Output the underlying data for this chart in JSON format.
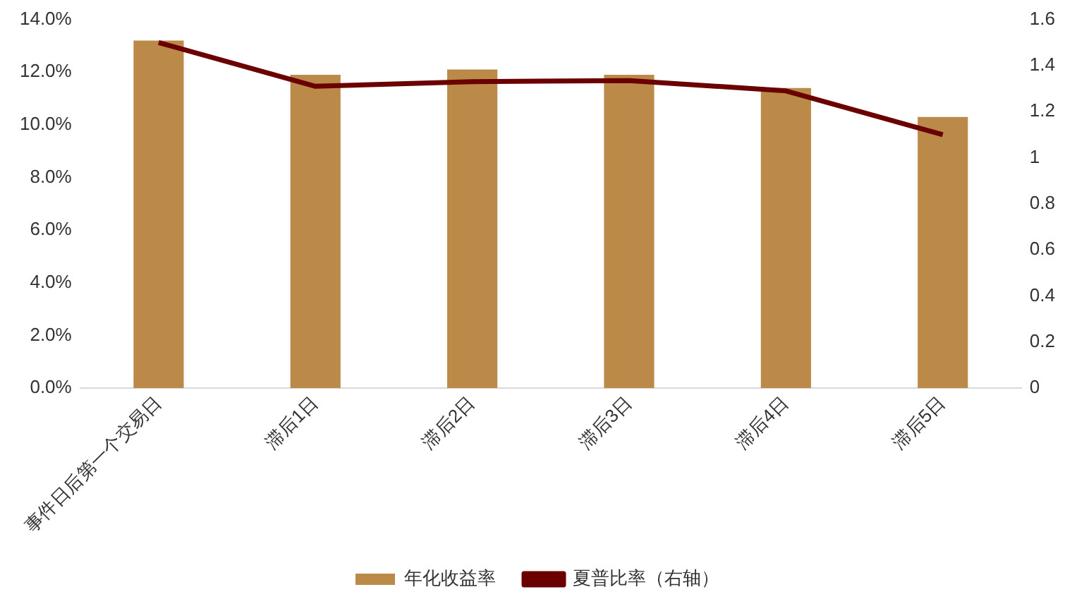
{
  "chart_data": {
    "type": "bar",
    "categories": [
      "事件日后第一个交易日",
      "滞后1日",
      "滞后2日",
      "滞后3日",
      "滞后4日",
      "滞后5日"
    ],
    "series": [
      {
        "name": "年化收益率",
        "color": "#bb8a48",
        "values": [
          13.2,
          11.9,
          12.1,
          11.9,
          11.4,
          10.3
        ]
      },
      {
        "name": "夏普比率（右轴）",
        "type": "line",
        "axis": "y2",
        "color": "#6b0000",
        "marker": "none",
        "values": [
          1.5,
          1.31,
          1.33,
          1.335,
          1.29,
          1.1
        ]
      }
    ],
    "ylim": [
      0,
      14
    ],
    "yticks": [
      {
        "value": 0,
        "label": "0.0%"
      },
      {
        "value": 2,
        "label": "2.0%"
      },
      {
        "value": 4,
        "label": "4.0%"
      },
      {
        "value": 6,
        "label": "6.0%"
      },
      {
        "value": 8,
        "label": "8.0%"
      },
      {
        "value": 10,
        "label": "10.0%"
      },
      {
        "value": 12,
        "label": "12.0%"
      },
      {
        "value": 14,
        "label": "14.0%"
      }
    ],
    "y2lim": [
      0,
      1.6
    ],
    "y2ticks": [
      0,
      0.2,
      0.4,
      0.6,
      0.8,
      1,
      1.2,
      1.4,
      1.6
    ],
    "grid": false,
    "legend": "bottom"
  }
}
